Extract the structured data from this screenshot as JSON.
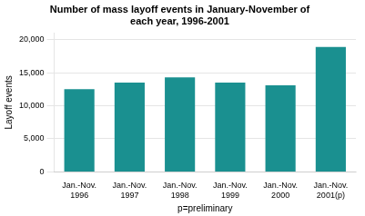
{
  "chart_data": {
    "type": "bar",
    "title": "Number of mass layoff events in January-November of\neach year, 1996-2001",
    "categories": [
      "Jan.-Nov.\n1996",
      "Jan.-Nov.\n1997",
      "Jan.-Nov.\n1998",
      "Jan.-Nov.\n1999",
      "Jan.-Nov.\n2000",
      "Jan.-Nov.\n2001(p)"
    ],
    "values": [
      12500,
      13500,
      14300,
      13500,
      13100,
      18900
    ],
    "color": "#1a9090",
    "ylabel": "Layoff events",
    "xlabel": "p=preliminary",
    "ylim": [
      0,
      21000
    ],
    "yticks": [
      0,
      {
        "value": 5000,
        "label": "5,000"
      },
      {
        "value": 10000,
        "label": "10,000"
      },
      {
        "value": 15000,
        "label": "15,000"
      },
      {
        "value": 20000,
        "label": "20,000"
      }
    ],
    "grid": true
  }
}
